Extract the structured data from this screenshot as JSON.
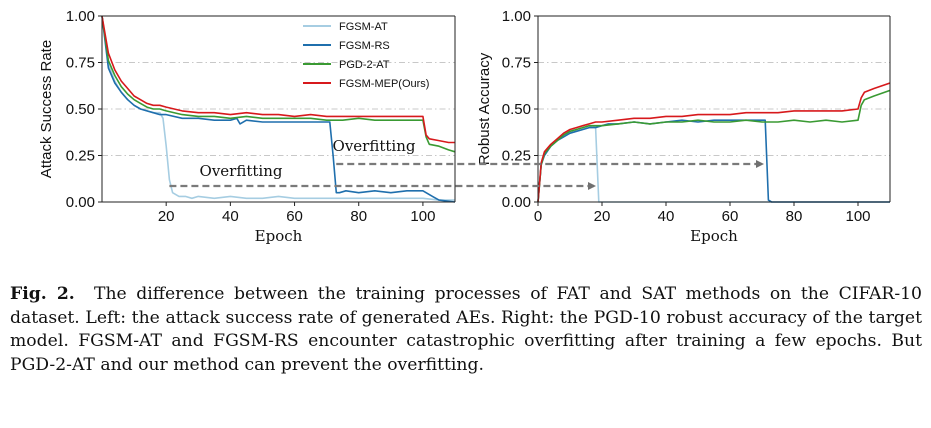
{
  "chart_data": [
    {
      "type": "line",
      "xlabel": "Epoch",
      "ylabel": "Attack Success Rate",
      "xlim": [
        0,
        110
      ],
      "ylim": [
        0,
        1
      ],
      "xticks": [
        "20",
        "40",
        "60",
        "80",
        "100"
      ],
      "yticks": [
        "0.00",
        "0.25",
        "0.50",
        "0.75",
        "1.00"
      ],
      "grid": "horizontal dash-dot",
      "legend": "top-right",
      "series": [
        {
          "name": "FGSM-AT",
          "color": "#a6cde2",
          "x": [
            0,
            2,
            4,
            6,
            8,
            10,
            12,
            14,
            16,
            18,
            19,
            20,
            21,
            22,
            24,
            26,
            28,
            30,
            35,
            40,
            45,
            50,
            55,
            60,
            65,
            70,
            72,
            75,
            80,
            85,
            90,
            95,
            100,
            105,
            110
          ],
          "y": [
            1.0,
            0.74,
            0.65,
            0.59,
            0.55,
            0.52,
            0.5,
            0.49,
            0.48,
            0.48,
            0.45,
            0.3,
            0.12,
            0.05,
            0.03,
            0.03,
            0.02,
            0.03,
            0.02,
            0.03,
            0.02,
            0.02,
            0.03,
            0.02,
            0.02,
            0.02,
            0.02,
            0.02,
            0.02,
            0.02,
            0.02,
            0.02,
            0.02,
            0.01,
            0.01
          ]
        },
        {
          "name": "FGSM-RS",
          "color": "#1f6fad",
          "x": [
            0,
            2,
            4,
            6,
            8,
            10,
            12,
            14,
            16,
            18,
            20,
            25,
            30,
            35,
            40,
            42,
            43,
            45,
            50,
            55,
            60,
            65,
            70,
            71,
            72,
            73,
            74,
            76,
            80,
            85,
            90,
            95,
            100,
            103,
            105,
            110
          ],
          "y": [
            1.0,
            0.72,
            0.64,
            0.59,
            0.55,
            0.52,
            0.5,
            0.49,
            0.48,
            0.47,
            0.47,
            0.45,
            0.45,
            0.44,
            0.44,
            0.45,
            0.42,
            0.44,
            0.43,
            0.43,
            0.43,
            0.43,
            0.43,
            0.43,
            0.25,
            0.05,
            0.05,
            0.06,
            0.05,
            0.06,
            0.05,
            0.06,
            0.06,
            0.03,
            0.01,
            0.0
          ]
        },
        {
          "name": "PGD-2-AT",
          "color": "#3a9a33",
          "x": [
            0,
            2,
            4,
            6,
            8,
            10,
            12,
            14,
            16,
            18,
            20,
            25,
            30,
            35,
            40,
            45,
            50,
            55,
            60,
            65,
            70,
            75,
            80,
            85,
            90,
            95,
            100,
            101,
            102,
            105,
            108,
            110
          ],
          "y": [
            1.0,
            0.76,
            0.68,
            0.62,
            0.58,
            0.55,
            0.53,
            0.51,
            0.5,
            0.5,
            0.49,
            0.47,
            0.46,
            0.46,
            0.45,
            0.46,
            0.45,
            0.45,
            0.45,
            0.45,
            0.44,
            0.44,
            0.45,
            0.44,
            0.44,
            0.44,
            0.44,
            0.35,
            0.31,
            0.3,
            0.28,
            0.27
          ]
        },
        {
          "name": "FGSM-MEP(Ours)",
          "color": "#d7191c",
          "x": [
            0,
            2,
            4,
            6,
            8,
            10,
            12,
            14,
            16,
            18,
            20,
            25,
            30,
            35,
            40,
            45,
            50,
            55,
            60,
            65,
            70,
            75,
            80,
            85,
            90,
            95,
            100,
            101,
            102,
            105,
            108,
            110
          ],
          "y": [
            1.0,
            0.8,
            0.71,
            0.65,
            0.61,
            0.57,
            0.55,
            0.53,
            0.52,
            0.52,
            0.51,
            0.49,
            0.48,
            0.48,
            0.47,
            0.48,
            0.47,
            0.47,
            0.46,
            0.47,
            0.46,
            0.46,
            0.46,
            0.46,
            0.46,
            0.46,
            0.46,
            0.36,
            0.34,
            0.33,
            0.32,
            0.32
          ]
        }
      ],
      "annotations": [
        "Overfitting",
        "Overfitting"
      ]
    },
    {
      "type": "line",
      "xlabel": "Epoch",
      "ylabel": "Robust Accuracy",
      "xlim": [
        0,
        110
      ],
      "ylim": [
        0,
        1
      ],
      "xticks": [
        "0",
        "20",
        "40",
        "60",
        "80",
        "100"
      ],
      "yticks": [
        "0.00",
        "0.25",
        "0.50",
        "0.75",
        "1.00"
      ],
      "grid": "horizontal dash-dot",
      "series": [
        {
          "name": "FGSM-AT",
          "color": "#a6cde2",
          "x": [
            0,
            1,
            2,
            4,
            6,
            8,
            10,
            12,
            14,
            16,
            17,
            18,
            19,
            20,
            30,
            40,
            60,
            80,
            100,
            110
          ],
          "y": [
            0.0,
            0.2,
            0.26,
            0.3,
            0.33,
            0.36,
            0.37,
            0.38,
            0.39,
            0.4,
            0.41,
            0.4,
            0.0,
            0.0,
            0.0,
            0.0,
            0.0,
            0.0,
            0.0,
            0.0
          ]
        },
        {
          "name": "FGSM-RS",
          "color": "#1f6fad",
          "x": [
            0,
            1,
            2,
            4,
            6,
            8,
            10,
            12,
            14,
            16,
            18,
            20,
            22,
            25,
            30,
            35,
            40,
            45,
            50,
            55,
            60,
            65,
            70,
            71,
            72,
            73,
            80,
            100,
            110
          ],
          "y": [
            0.0,
            0.2,
            0.25,
            0.3,
            0.33,
            0.35,
            0.37,
            0.38,
            0.39,
            0.4,
            0.4,
            0.41,
            0.42,
            0.42,
            0.43,
            0.42,
            0.43,
            0.44,
            0.43,
            0.44,
            0.44,
            0.44,
            0.44,
            0.44,
            0.01,
            0.0,
            0.0,
            0.0,
            0.0
          ]
        },
        {
          "name": "PGD-2-AT",
          "color": "#3a9a33",
          "x": [
            0,
            1,
            2,
            4,
            6,
            8,
            10,
            12,
            14,
            16,
            18,
            20,
            25,
            30,
            35,
            40,
            45,
            50,
            55,
            60,
            65,
            70,
            75,
            80,
            85,
            90,
            95,
            100,
            101,
            102,
            105,
            110
          ],
          "y": [
            0.0,
            0.2,
            0.26,
            0.3,
            0.33,
            0.36,
            0.38,
            0.39,
            0.4,
            0.41,
            0.41,
            0.41,
            0.42,
            0.43,
            0.42,
            0.43,
            0.43,
            0.44,
            0.43,
            0.43,
            0.44,
            0.43,
            0.43,
            0.44,
            0.43,
            0.44,
            0.43,
            0.44,
            0.52,
            0.55,
            0.57,
            0.6
          ]
        },
        {
          "name": "FGSM-MEP(Ours)",
          "color": "#d7191c",
          "x": [
            0,
            1,
            2,
            4,
            6,
            8,
            10,
            12,
            14,
            16,
            18,
            20,
            25,
            30,
            35,
            40,
            45,
            50,
            55,
            60,
            65,
            70,
            75,
            80,
            85,
            90,
            95,
            100,
            101,
            102,
            105,
            110
          ],
          "y": [
            0.0,
            0.21,
            0.27,
            0.31,
            0.34,
            0.37,
            0.39,
            0.4,
            0.41,
            0.42,
            0.43,
            0.43,
            0.44,
            0.45,
            0.45,
            0.46,
            0.46,
            0.47,
            0.47,
            0.47,
            0.48,
            0.48,
            0.48,
            0.49,
            0.49,
            0.49,
            0.49,
            0.5,
            0.56,
            0.59,
            0.61,
            0.64
          ]
        }
      ]
    }
  ],
  "caption": {
    "label": "Fig. 2.",
    "text": "The difference between the training processes of FAT and SAT methods on the CIFAR-10 dataset. Left: the attack success rate of generated AEs. Right: the PGD-10 robust accuracy of the target model. FGSM-AT and FGSM-RS encounter catastrophic overfitting after training a few epochs. But PGD-2-AT and our method can prevent the overfitting."
  }
}
